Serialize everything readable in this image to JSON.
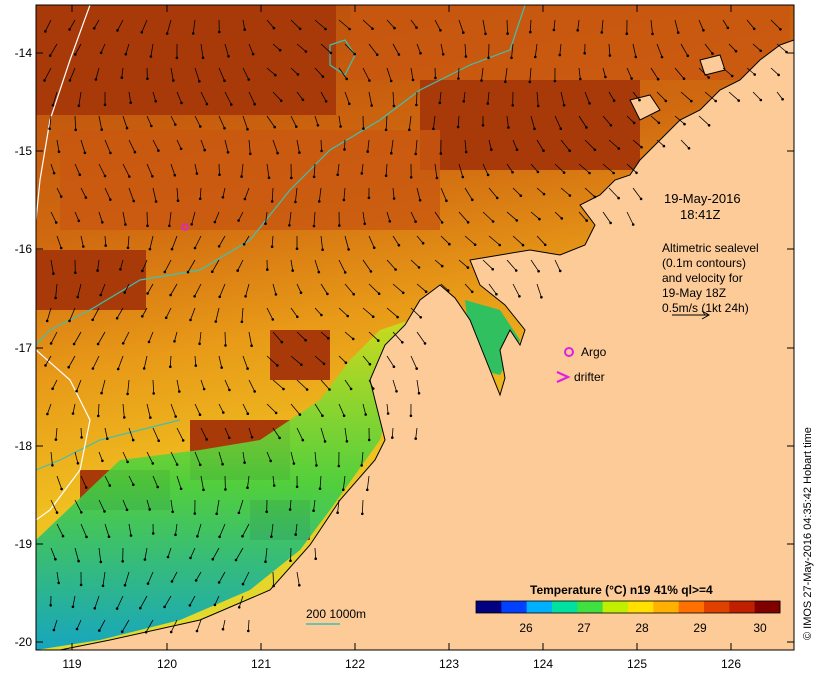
{
  "map": {
    "x_ticks": [
      "119",
      "120",
      "121",
      "122",
      "123",
      "124",
      "125",
      "126"
    ],
    "y_ticks": [
      "-14",
      "-15",
      "-16",
      "-17",
      "-18",
      "-19",
      "-20"
    ],
    "annotation": {
      "date": "19-May-2016",
      "time": "18:41Z",
      "altimetry_lines": [
        "Altimetric sealevel",
        "(0.1m contours)",
        "and velocity for",
        "19-May 18Z",
        "0.5m/s (1kt 24h)"
      ]
    },
    "legend": {
      "argo_label": "Argo",
      "drifter_label": "drifter",
      "argo_color": "#e020e0",
      "drifter_color": "#e020e0"
    },
    "depth_contours_label": "200  1000m",
    "depth_contour_color": "#40c0b0",
    "colorbar": {
      "title": "Temperature (°C) n19 41% ql>=4",
      "ticks": [
        "26",
        "27",
        "28",
        "29",
        "30"
      ],
      "colors": [
        "#000080",
        "#0040ff",
        "#00b0ff",
        "#00e0a0",
        "#40e040",
        "#c0f000",
        "#ffe000",
        "#ffb000",
        "#ff7000",
        "#e04000",
        "#c02000",
        "#800000"
      ]
    },
    "credit": "© IMOS 27-May-2016 04:35:42 Hobart time",
    "land_color": "#fccb98"
  }
}
